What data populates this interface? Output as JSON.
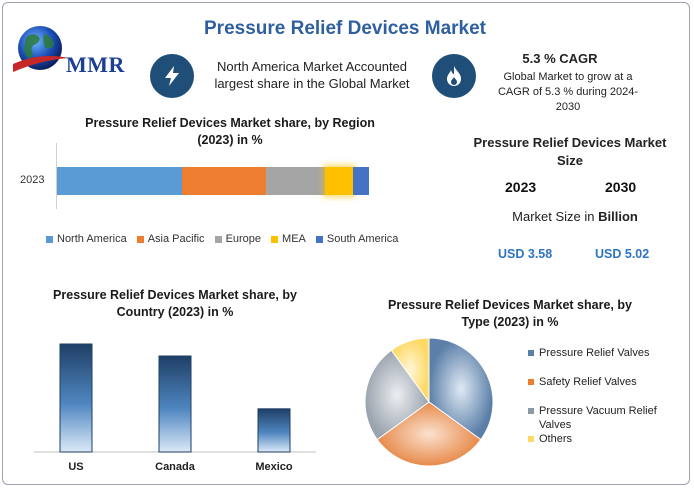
{
  "header": {
    "title": "Pressure Relief Devices Market",
    "logo_text": "MMR"
  },
  "info": {
    "north_america": "North America Market Accounted largest share in the Global Market",
    "cagr_title": "5.3 % CAGR",
    "cagr_text": "Global Market to grow at a CAGR of 5.3 % during 2024-2030"
  },
  "market_size": {
    "title": "Pressure Relief Devices Market Size",
    "year_start": "2023",
    "year_end": "2030",
    "unit_prefix": "Market Size in ",
    "unit_bold": "Billion",
    "value_start": "USD 3.58",
    "value_end": "USD 5.02"
  },
  "colors": {
    "north_america": "#5b9bd5",
    "asia_pacific": "#ed7d31",
    "europe": "#a5a5a5",
    "mea": "#ffc000",
    "south_america": "#4472c4",
    "icon_bg": "#1f4e79",
    "title": "#2f5f9e"
  },
  "chart_data": [
    {
      "type": "bar",
      "orientation": "horizontal-stacked",
      "title": "Pressure Relief Devices Market share, by Region (2023) in %",
      "categories": [
        "2023"
      ],
      "series": [
        {
          "name": "North America",
          "values": [
            40
          ]
        },
        {
          "name": "Asia Pacific",
          "values": [
            27
          ]
        },
        {
          "name": "Europe",
          "values": [
            19
          ]
        },
        {
          "name": "MEA",
          "values": [
            9
          ]
        },
        {
          "name": "South America",
          "values": [
            5
          ]
        }
      ],
      "legend": "bottom"
    },
    {
      "type": "bar",
      "title": "Pressure Relief Devices Market share, by Country (2023) in %",
      "categories": [
        "US",
        "Canada",
        "Mexico"
      ],
      "values": [
        45,
        40,
        18
      ],
      "ylim": [
        0,
        50
      ]
    },
    {
      "type": "pie",
      "title": "Pressure Relief Devices Market share, by Type (2023) in %",
      "labels": [
        "Pressure Relief Valves",
        "Safety Relief Valves",
        "Pressure Vacuum Relief Valves",
        "Others"
      ],
      "values": [
        35,
        30,
        25,
        10
      ],
      "legend": "right"
    }
  ]
}
